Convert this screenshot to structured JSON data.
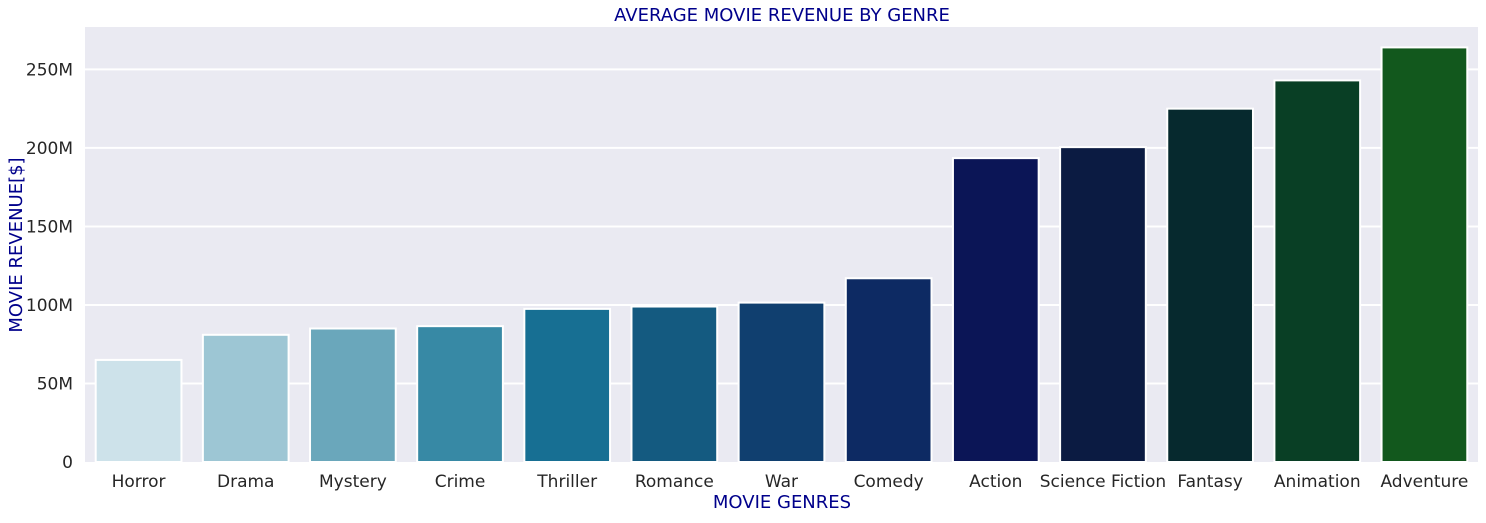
{
  "chart_data": {
    "type": "bar",
    "title": "AVERAGE MOVIE REVENUE BY GENRE",
    "xlabel": "MOVIE GENRES",
    "ylabel": "MOVIE REVENUE[$]",
    "categories": [
      "Horror",
      "Drama",
      "Mystery",
      "Crime",
      "Thriller",
      "Romance",
      "War",
      "Comedy",
      "Action",
      "Science Fiction",
      "Fantasy",
      "Animation",
      "Adventure"
    ],
    "values": [
      65000000,
      81000000,
      85000000,
      86500000,
      97500000,
      99000000,
      101500000,
      117000000,
      193500000,
      200500000,
      225000000,
      243000000,
      264000000
    ],
    "colors": [
      "#cde2ea",
      "#9dc6d4",
      "#6aa7bb",
      "#3789a5",
      "#176f93",
      "#145a80",
      "#103f6f",
      "#0d2a63",
      "#0b1556",
      "#0b1b42",
      "#06292e",
      "#093f25",
      "#12581d"
    ],
    "ylim": [
      0,
      277000000
    ],
    "yticks": [
      0,
      50000000,
      100000000,
      150000000,
      200000000,
      250000000
    ],
    "ytick_labels": [
      "0",
      "50M",
      "100M",
      "150M",
      "200M",
      "250M"
    ],
    "grid": true,
    "background": "#eaeaf2",
    "label_color": "#00008b",
    "tick_color": "#262626"
  }
}
